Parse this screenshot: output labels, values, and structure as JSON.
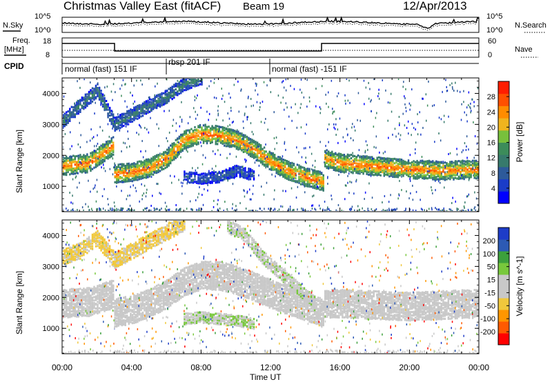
{
  "header": {
    "station": "Christmas Valley East (fitACF)",
    "beam": "Beam 19",
    "date": "12/Apr/2013"
  },
  "noise_panel": {
    "left_label": "N.Sky",
    "right_label": "N.Search",
    "left_ticks": [
      "10^5",
      "10^0"
    ],
    "right_ticks": [
      "10^5",
      "10^0"
    ]
  },
  "freq_panel": {
    "left_label_1": "Freq.",
    "left_label_2": "[MHz]",
    "right_label": "Nave",
    "left_ticks": [
      "18",
      "8"
    ],
    "right_ticks": [
      "60",
      "0"
    ]
  },
  "cpid_panel": {
    "label": "CPID",
    "modes": [
      {
        "text": "normal (fast) 151 IF",
        "start_hour": 0
      },
      {
        "text": "rbsp 201 IF",
        "start_hour": 6
      },
      {
        "text": "normal (fast) -151 IF",
        "start_hour": 12
      }
    ]
  },
  "chart_data": [
    {
      "type": "heatmap",
      "title": "Power",
      "ylabel": "Slant Range [km]",
      "xlim": [
        0,
        24
      ],
      "ylim": [
        180,
        4500
      ],
      "yticks": [
        "1000",
        "2000",
        "3000",
        "4000"
      ],
      "colorbar": {
        "label": "Power [dB]",
        "range": [
          0,
          32
        ],
        "ticks": [
          "28",
          "24",
          "20",
          "16",
          "12",
          "8",
          "4"
        ],
        "colors": [
          "#0000ff",
          "#1a3cc8",
          "#2d5a9a",
          "#377a6c",
          "#3c8c5a",
          "#78c03c",
          "#f0b41e",
          "#ff8c00",
          "#ff5000",
          "#ff1e00"
        ]
      },
      "bands": [
        {
          "name": "main",
          "points": [
            [
              0,
              1650
            ],
            [
              1.5,
              1750
            ],
            [
              2.9,
              2300
            ],
            [
              3.0,
              1400
            ],
            [
              4,
              1450
            ],
            [
              5,
              1600
            ],
            [
              6,
              1900
            ],
            [
              7,
              2500
            ],
            [
              8,
              2700
            ],
            [
              9,
              2650
            ],
            [
              10,
              2500
            ],
            [
              11,
              2200
            ],
            [
              12,
              1800
            ],
            [
              13,
              1500
            ],
            [
              14,
              1300
            ],
            [
              15,
              1150
            ],
            [
              15.1,
              1900
            ],
            [
              16,
              1750
            ],
            [
              18,
              1650
            ],
            [
              20,
              1550
            ],
            [
              22,
              1500
            ],
            [
              24,
              1550
            ]
          ],
          "width": 280,
          "level": 26
        },
        {
          "name": "upper",
          "points": [
            [
              0,
              3100
            ],
            [
              1,
              3600
            ],
            [
              2,
              4100
            ],
            [
              3,
              3000
            ],
            [
              4,
              3300
            ],
            [
              5,
              3600
            ],
            [
              6,
              3900
            ],
            [
              7,
              4300
            ],
            [
              8,
              4500
            ]
          ],
          "width": 200,
          "level": 12
        },
        {
          "name": "sub",
          "points": [
            [
              7,
              1300
            ],
            [
              8,
              1250
            ],
            [
              9,
              1300
            ],
            [
              10,
              1500
            ],
            [
              11,
              1350
            ]
          ],
          "width": 150,
          "level": 8
        }
      ]
    },
    {
      "type": "heatmap",
      "title": "Velocity",
      "ylabel": "Slant Range [km]",
      "xlabel": "Time UT",
      "xlim": [
        0,
        24
      ],
      "xticks": [
        "00:00",
        "04:00",
        "08:00",
        "12:00",
        "16:00",
        "20:00",
        "00:00"
      ],
      "ylim": [
        180,
        4500
      ],
      "yticks": [
        "1000",
        "2000",
        "3000",
        "4000"
      ],
      "colorbar": {
        "label": "Velocity [m s^-1]",
        "range": [
          -250,
          250
        ],
        "ticks": [
          "200",
          "100",
          "50",
          "15",
          "-15",
          "-50",
          "-100",
          "-200"
        ],
        "colors": [
          "#ff0000",
          "#ff5a00",
          "#ff9600",
          "#f0c83c",
          "#c8c8c8",
          "#c8c8c8",
          "#78c83c",
          "#3ca03c",
          "#2d5ab4",
          "#1e3cc8"
        ]
      },
      "bands": [
        {
          "name": "ground-scatter",
          "points": [
            [
              0,
              1800
            ],
            [
              1.5,
              1850
            ],
            [
              2.9,
              2100
            ],
            [
              3.0,
              1500
            ],
            [
              4,
              1600
            ],
            [
              5,
              1800
            ],
            [
              6,
              2100
            ],
            [
              7,
              2500
            ],
            [
              8,
              2700
            ],
            [
              9,
              2700
            ],
            [
              10,
              2550
            ],
            [
              11,
              2350
            ],
            [
              12,
              2100
            ],
            [
              13,
              1900
            ],
            [
              14,
              1700
            ],
            [
              15,
              1500
            ],
            [
              15.1,
              1800
            ],
            [
              16,
              1800
            ],
            [
              18,
              1750
            ],
            [
              20,
              1700
            ],
            [
              22,
              1750
            ],
            [
              24,
              1800
            ]
          ],
          "width": 450,
          "level": 0
        },
        {
          "name": "green-arc",
          "points": [
            [
              9.5,
              4300
            ],
            [
              10.5,
              4000
            ],
            [
              11.5,
              3300
            ],
            [
              12.5,
              2800
            ],
            [
              13.5,
              2300
            ],
            [
              14.5,
              1800
            ]
          ],
          "width": 180,
          "level": 40
        },
        {
          "name": "lower-green",
          "points": [
            [
              7,
              1300
            ],
            [
              8,
              1350
            ],
            [
              9,
              1300
            ],
            [
              10,
              1250
            ],
            [
              11,
              1150
            ]
          ],
          "width": 150,
          "level": 45
        },
        {
          "name": "orange-upper",
          "points": [
            [
              0,
              3300
            ],
            [
              1,
              3500
            ],
            [
              2,
              3900
            ],
            [
              3,
              3200
            ],
            [
              5,
              3800
            ],
            [
              6,
              4100
            ],
            [
              7,
              4400
            ]
          ],
          "width": 220,
          "level": -60
        }
      ]
    }
  ]
}
